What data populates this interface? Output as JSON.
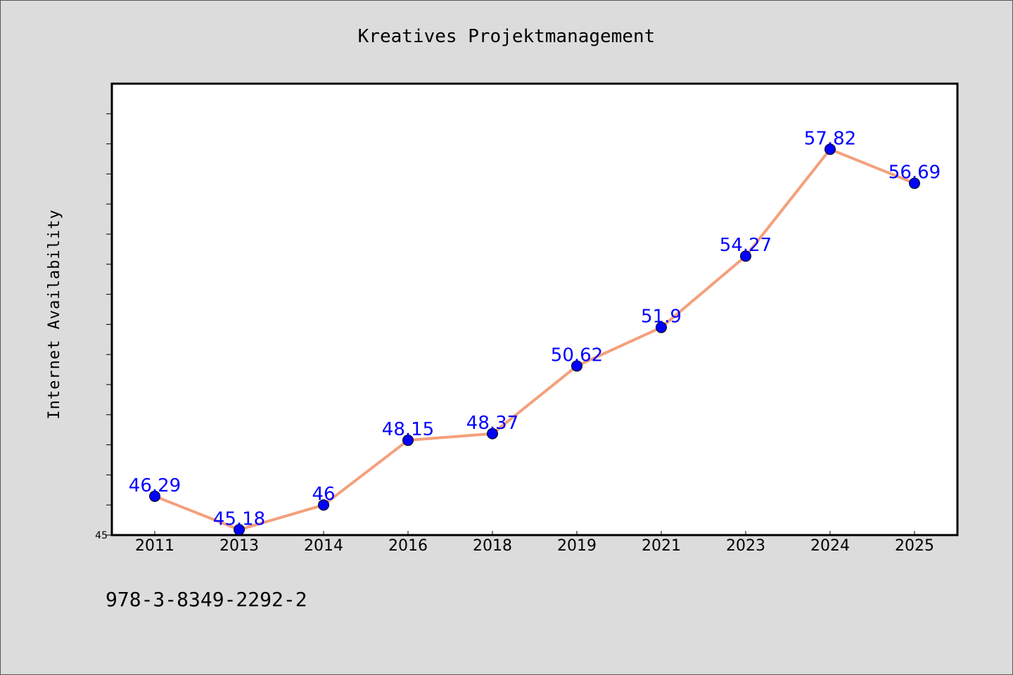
{
  "chart_data": {
    "type": "line",
    "title": "Kreatives Projektmanagement",
    "xlabel": "",
    "ylabel": "Internet Availability",
    "categories": [
      "2011",
      "2013",
      "2014",
      "2016",
      "2018",
      "2019",
      "2021",
      "2023",
      "2024",
      "2025"
    ],
    "series": [
      {
        "values": [
          46.29,
          45.18,
          46,
          48.15,
          48.37,
          50.62,
          51.9,
          54.27,
          57.82,
          56.69
        ],
        "data_labels": [
          "46.29",
          "45.18",
          "46",
          "48.15",
          "48.37",
          "50.62",
          "51.9",
          "54.27",
          "57.82",
          "56.69"
        ],
        "line_color": "#f4a07c",
        "marker_color": "#0000ff"
      }
    ],
    "ylim": [
      45,
      60
    ],
    "yticks_labeled": [
      "45"
    ],
    "grid": false,
    "legend": "none"
  },
  "footer": {
    "isbn": "978-3-8349-2292-2"
  },
  "colors": {
    "background": "#dcdcdc",
    "plot_background": "#ffffff",
    "line": "#f4a07c",
    "marker": "#0000ff",
    "data_label": "#0000ff"
  }
}
